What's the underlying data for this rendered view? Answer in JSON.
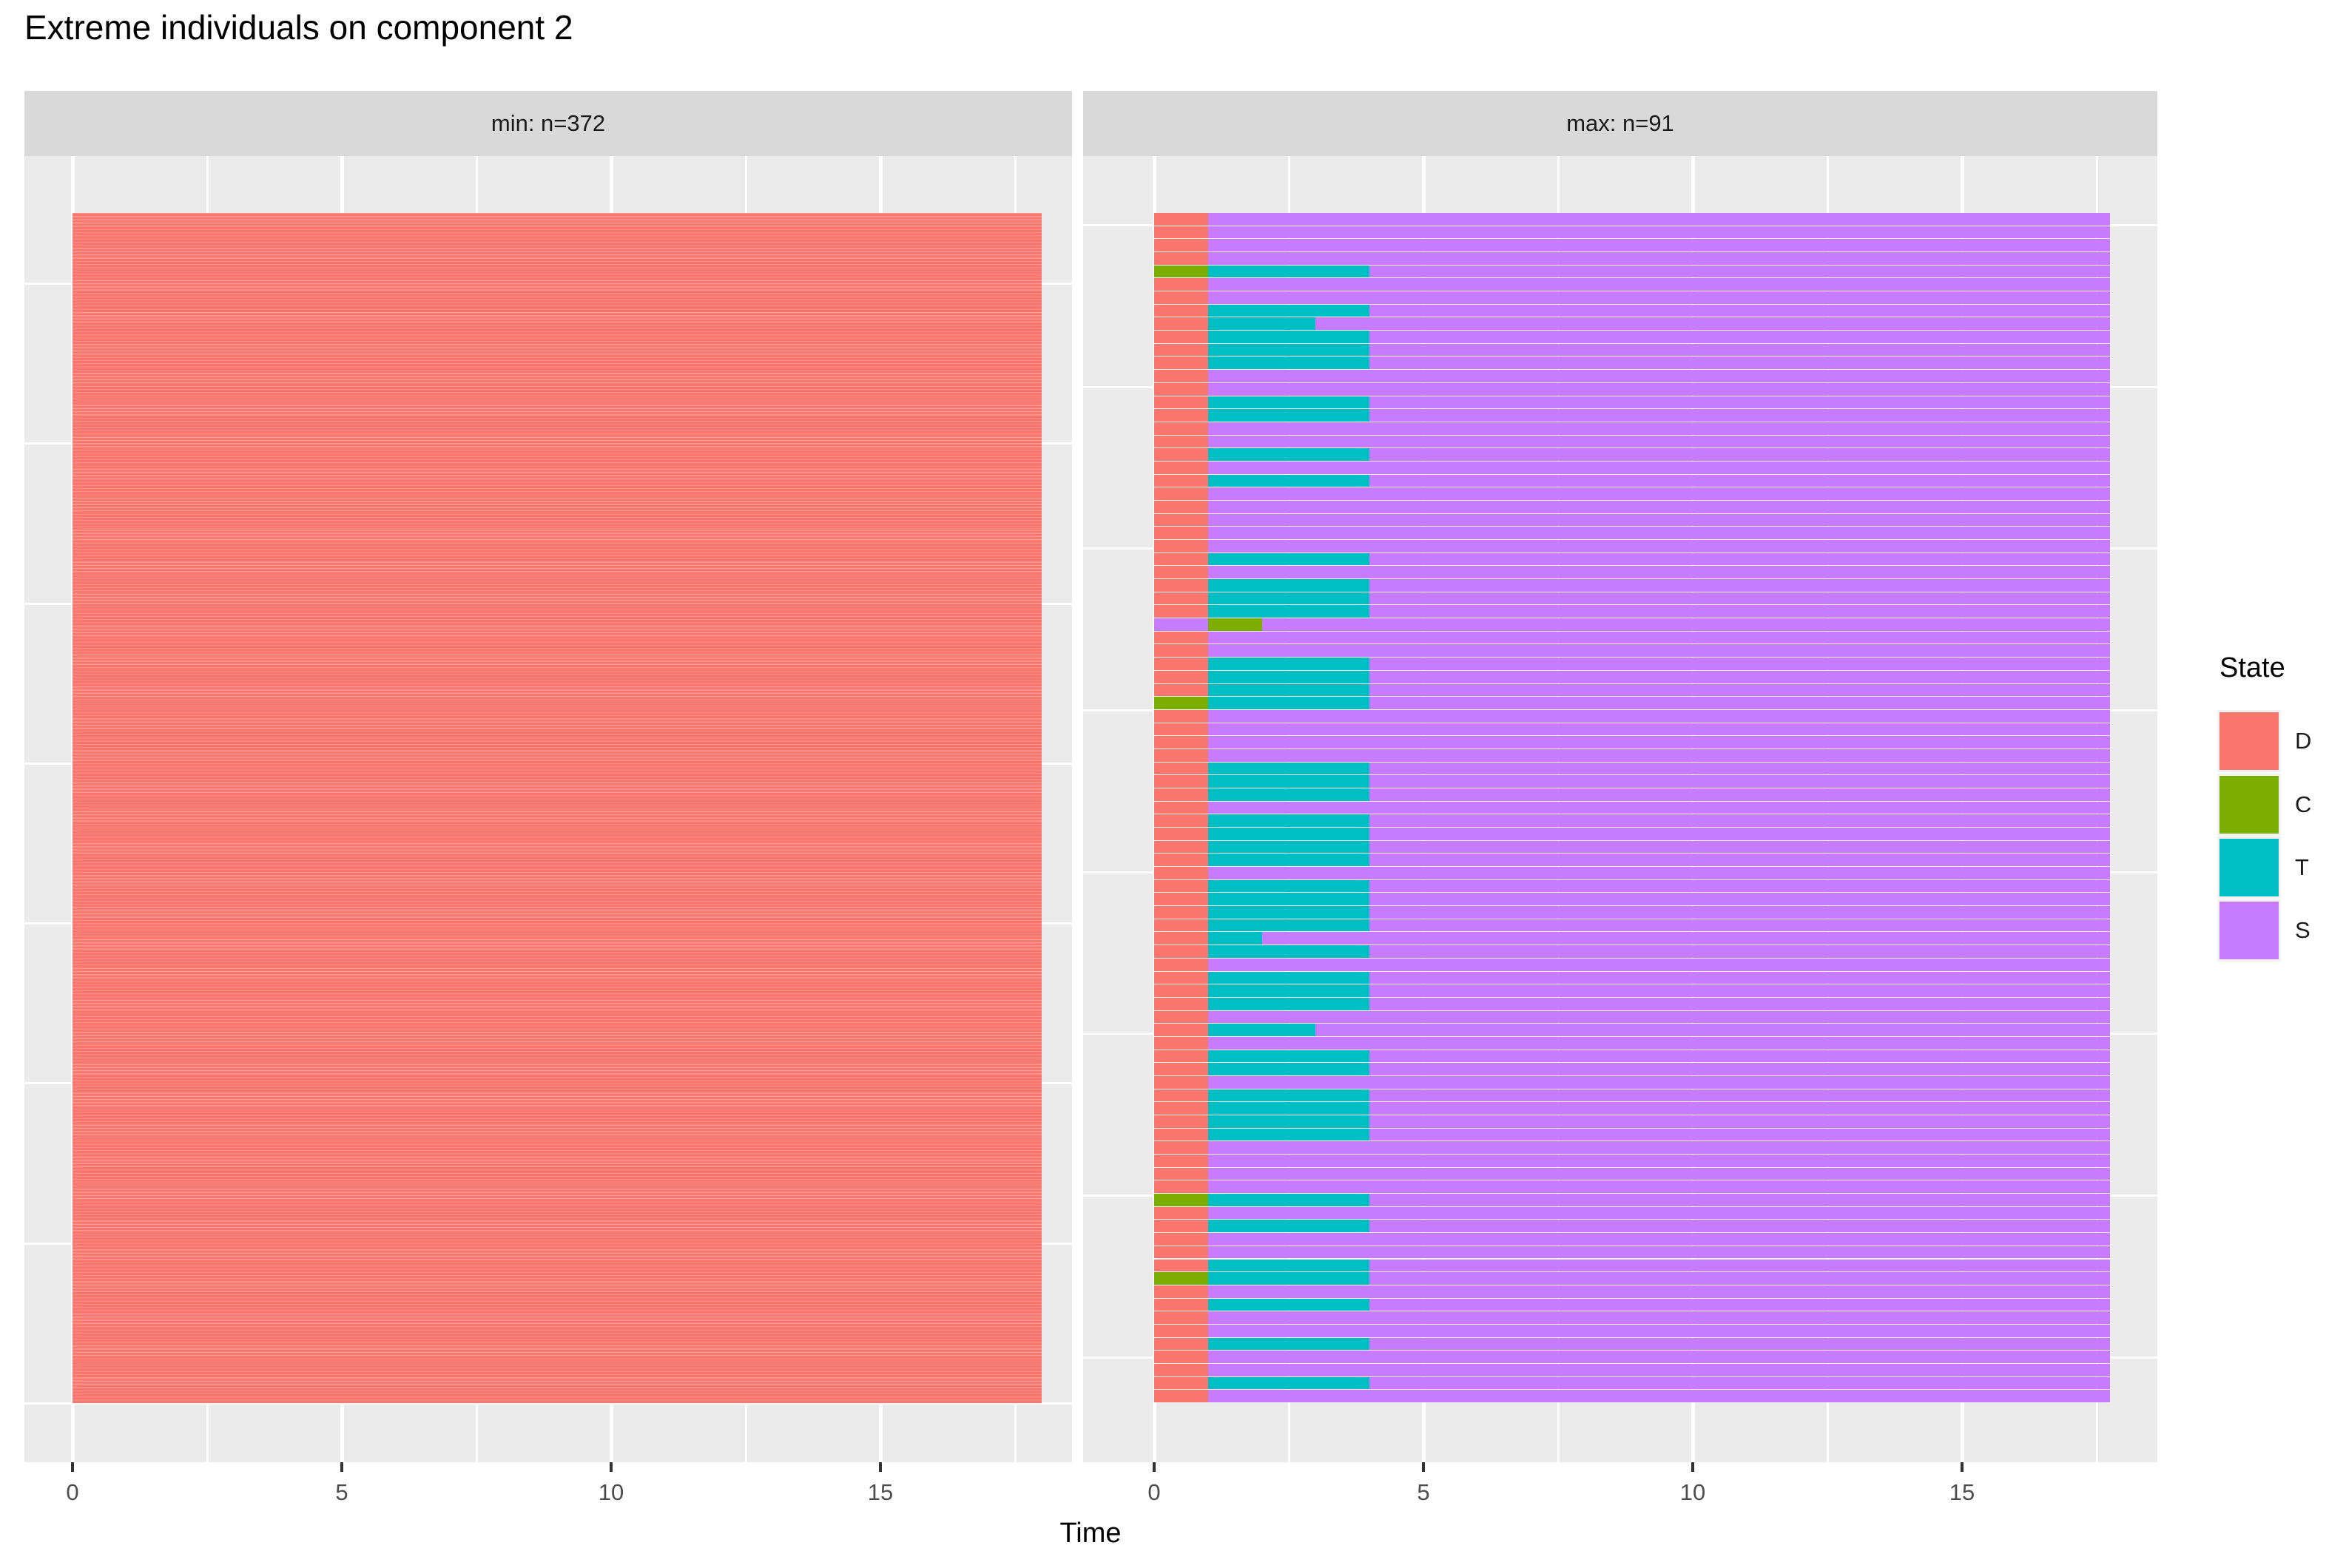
{
  "title": "Extreme individuals on component 2",
  "facets": [
    {
      "label": "min: n=372"
    },
    {
      "label": "max: n=91"
    }
  ],
  "axis": {
    "x_title": "Time",
    "x_ticks": [
      "0",
      "5",
      "10",
      "15"
    ],
    "x_tick_values": [
      0,
      5,
      10,
      15
    ]
  },
  "legend": {
    "title": "State",
    "entries": [
      {
        "label": "D",
        "color": "#F8766D"
      },
      {
        "label": "C",
        "color": "#7CAE00"
      },
      {
        "label": "T",
        "color": "#00BFC4"
      },
      {
        "label": "S",
        "color": "#C77CFF"
      }
    ]
  },
  "chart_data": {
    "type": "heatmap",
    "subtype": "state-sequence-index-plot",
    "title": "Extreme individuals on component 2",
    "xlabel": "Time",
    "x_range": [
      0,
      18
    ],
    "x_major_breaks": [
      0,
      5,
      10,
      15
    ],
    "x_minor_breaks": [
      2.5,
      7.5,
      12.5,
      17.5
    ],
    "grid": "on",
    "legend_position": "right",
    "state_colors": {
      "D": "#F8766D",
      "C": "#7CAE00",
      "T": "#00BFC4",
      "S": "#C77CFF"
    },
    "panel_bg": "#EBEBEB",
    "strip_bg": "#D9D9D9",
    "grid_color": "#FFFFFF",
    "panels": [
      {
        "facet": "min: n=372",
        "n_individuals": 372,
        "uniform_block": {
          "state": "D",
          "start": 0,
          "end": 18
        },
        "hgrid_y": [
          172,
          388,
          605,
          821,
          1037,
          1253,
          1470,
          1686
        ]
      },
      {
        "facet": "max: n=91",
        "n_individuals": 91,
        "sequence_end": 17.75,
        "row_patterns": {
          "DS": [
            [
              "D",
              0,
              1
            ],
            [
              "S",
              1,
              17.75
            ]
          ],
          "DT4S": [
            [
              "D",
              0,
              1
            ],
            [
              "T",
              1,
              4
            ],
            [
              "S",
              4,
              17.75
            ]
          ],
          "DT3S": [
            [
              "D",
              0,
              1
            ],
            [
              "T",
              1,
              3
            ],
            [
              "S",
              3,
              17.75
            ]
          ],
          "DT2S": [
            [
              "D",
              0,
              1
            ],
            [
              "T",
              1,
              2
            ],
            [
              "S",
              2,
              17.75
            ]
          ],
          "CT4S": [
            [
              "C",
              0,
              1
            ],
            [
              "T",
              1,
              4
            ],
            [
              "S",
              4,
              17.75
            ]
          ],
          "SCS": [
            [
              "S",
              0,
              1
            ],
            [
              "C",
              1,
              2
            ],
            [
              "S",
              2,
              17.75
            ]
          ]
        },
        "rows": [
          "DS",
          "DS",
          "DS",
          "DS",
          "CT4S",
          "DS",
          "DS",
          "DT4S",
          "DT3S",
          "DT4S",
          "DT4S",
          "DT4S",
          "DS",
          "DS",
          "DT4S",
          "DT4S",
          "DS",
          "DS",
          "DT4S",
          "DS",
          "DT4S",
          "DS",
          "DS",
          "DS",
          "DS",
          "DS",
          "DT4S",
          "DS",
          "DT4S",
          "DT4S",
          "DT4S",
          "SCS",
          "DS",
          "DS",
          "DT4S",
          "DT4S",
          "DT4S",
          "CT4S",
          "DS",
          "DS",
          "DS",
          "DS",
          "DT4S",
          "DT4S",
          "DT4S",
          "DS",
          "DT4S",
          "DT4S",
          "DT4S",
          "DT4S",
          "DS",
          "DT4S",
          "DT4S",
          "DT4S",
          "DT4S",
          "DT2S",
          "DT4S",
          "DS",
          "DT4S",
          "DT4S",
          "DT4S",
          "DS",
          "DT3S",
          "DS",
          "DT4S",
          "DT4S",
          "DS",
          "DT4S",
          "DT4S",
          "DT4S",
          "DT4S",
          "DS",
          "DS",
          "DS",
          "DS",
          "CT4S",
          "DS",
          "DT4S",
          "DS",
          "DS",
          "DT4S",
          "CT4S",
          "DS",
          "DT4S",
          "DS",
          "DS",
          "DT4S",
          "DS",
          "DS",
          "DT4S",
          "DS"
        ],
        "hgrid_y": [
          93,
          312,
          530,
          749,
          968,
          1186,
          1405,
          1624
        ]
      }
    ]
  }
}
